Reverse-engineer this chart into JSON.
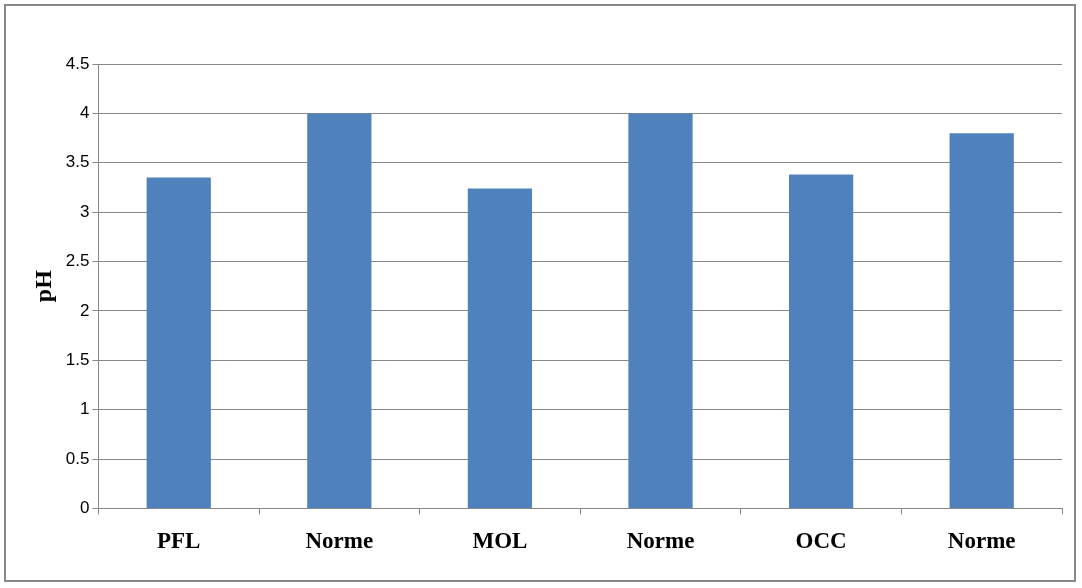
{
  "chart_data": {
    "type": "bar",
    "ylabel": "pH",
    "categories": [
      "PFL",
      "Norme",
      "MOL",
      "Norme",
      "OCC",
      "Norme"
    ],
    "values": [
      3.35,
      4.0,
      3.24,
      4.0,
      3.38,
      3.8
    ],
    "color": "#4f81bd",
    "ylim": [
      0,
      4.5
    ],
    "yticks": [
      0,
      0.5,
      1,
      1.5,
      2,
      2.5,
      3,
      3.5,
      4,
      4.5
    ],
    "grid": "y",
    "legend": false
  }
}
